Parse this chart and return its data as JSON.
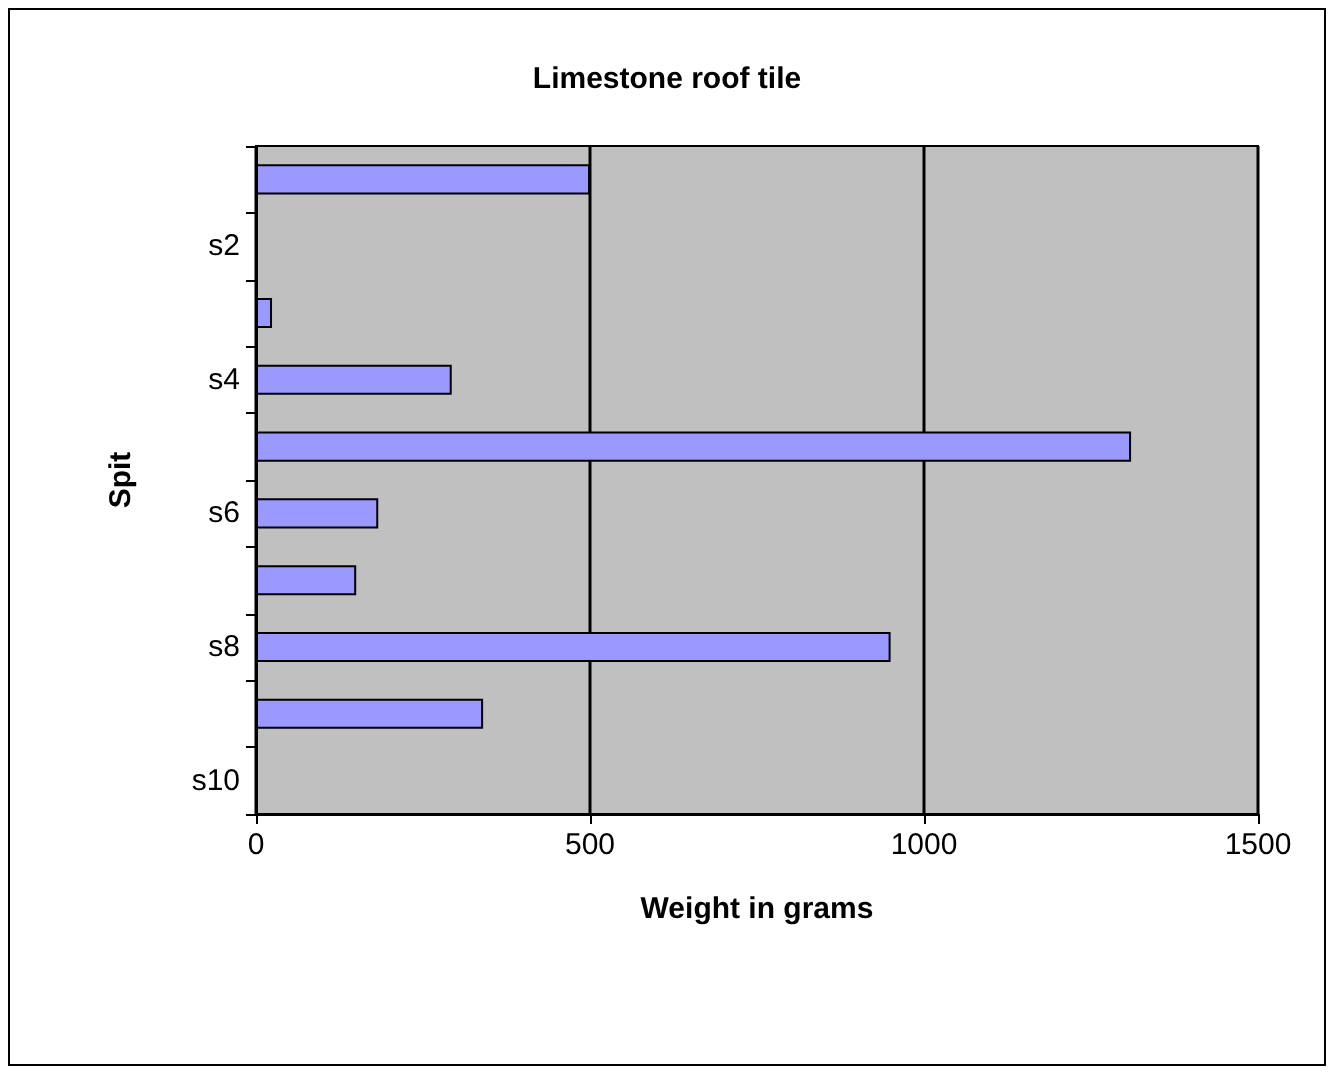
{
  "chart_data": {
    "type": "bar",
    "orientation": "horizontal",
    "title": "Limestone roof tile",
    "xlabel": "Weight in grams",
    "ylabel": "Spit",
    "categories": [
      null,
      "s2",
      null,
      "s4",
      null,
      "s6",
      null,
      "s8",
      null,
      "s10"
    ],
    "values": [
      500,
      null,
      24,
      293,
      1310,
      183,
      150,
      950,
      340,
      null
    ],
    "color": "#9999ff",
    "xlim": [
      0,
      1500
    ],
    "xticks": [
      0,
      500,
      1000,
      1500
    ],
    "grid": "x"
  }
}
